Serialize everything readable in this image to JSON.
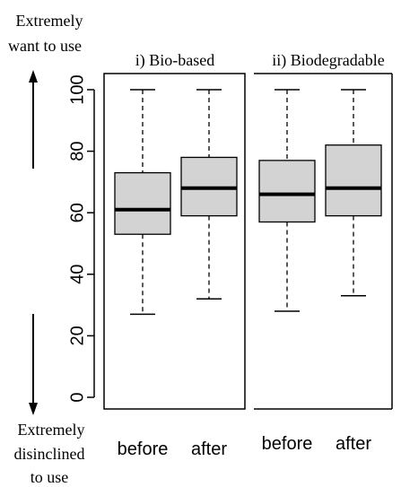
{
  "annotations": {
    "top_line1": "Extremely",
    "top_line2": "want to use",
    "bottom_line1": "Extremely",
    "bottom_line2": "disinclined",
    "bottom_line3": "to use"
  },
  "chart_data": [
    {
      "type": "boxplot",
      "title": "i) Bio-based",
      "categories": [
        "before",
        "after"
      ],
      "boxes": [
        {
          "whisker_low": 27,
          "q1": 53,
          "median": 61,
          "q3": 73,
          "whisker_high": 100
        },
        {
          "whisker_low": 32,
          "q1": 59,
          "median": 68,
          "q3": 78,
          "whisker_high": 100
        }
      ],
      "ylim": [
        0,
        100
      ],
      "yticks": [
        0,
        20,
        40,
        60,
        80,
        100
      ],
      "ylabel": "",
      "box_fill": "#d3d3d3"
    },
    {
      "type": "boxplot",
      "title": "ii) Biodegradable",
      "categories": [
        "before",
        "after"
      ],
      "boxes": [
        {
          "whisker_low": 28,
          "q1": 57,
          "median": 66,
          "q3": 77,
          "whisker_high": 100
        },
        {
          "whisker_low": 33,
          "q1": 59,
          "median": 68,
          "q3": 82,
          "whisker_high": 100
        }
      ],
      "ylim": [
        0,
        100
      ],
      "box_fill": "#d3d3d3"
    }
  ]
}
